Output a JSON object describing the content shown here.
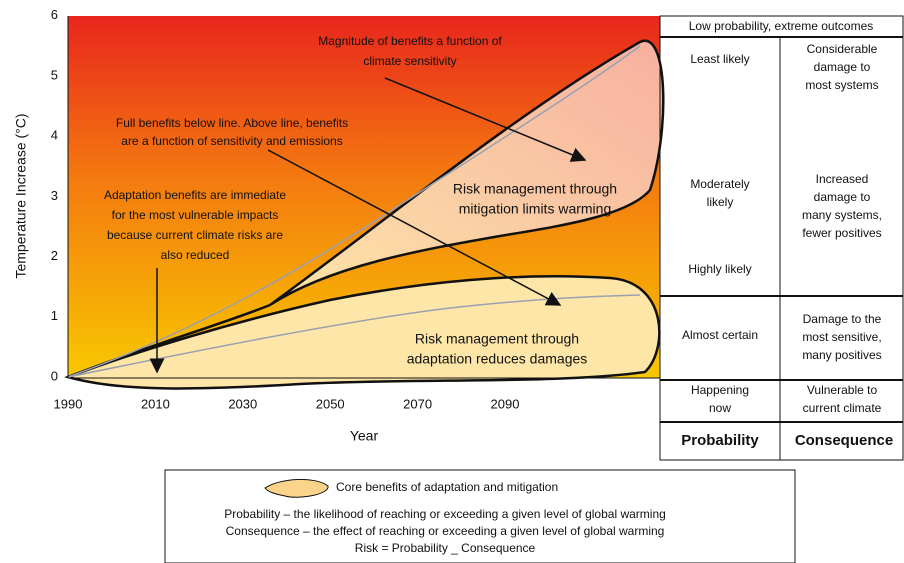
{
  "axes": {
    "y_label": "Temperature Increase (°C)",
    "x_label": "Year",
    "y_ticks": [
      "0",
      "1",
      "2",
      "3",
      "4",
      "5",
      "6"
    ],
    "x_ticks": [
      "1990",
      "2010",
      "2030",
      "2050",
      "2070",
      "2090"
    ]
  },
  "annotations": [
    [
      "Magnitude of benefits a function of",
      "climate sensitivity"
    ],
    [
      "Full benefits below line. Above line, benefits",
      "are a function of sensitivity and emissions"
    ],
    [
      "Adaptation benefits are immediate",
      "for the most vulnerable impacts",
      "because current climate risks are",
      "also reduced"
    ],
    [
      "Risk management through",
      "mitigation limits warming"
    ],
    [
      "Risk management through",
      "adaptation reduces damages"
    ]
  ],
  "table": {
    "header": "Low  probability, extreme outcomes",
    "probability": [
      [
        "Least likely"
      ],
      [
        "Moderately",
        "likely"
      ],
      [
        "Highly likely"
      ],
      [
        "Almost certain"
      ],
      [
        "Happening",
        "now"
      ]
    ],
    "consequence": [
      [
        "Considerable",
        "damage to",
        "most systems"
      ],
      [
        "Increased",
        "damage to",
        "many systems,",
        "fewer positives"
      ],
      [
        "Damage to the",
        "most sensitive,",
        "many positives"
      ],
      [
        "Vulnerable to",
        "current climate"
      ]
    ],
    "footer": [
      "Probability",
      "Consequence"
    ]
  },
  "legend": {
    "swatch_label": "Core benefits of adaptation and mitigation",
    "lines": [
      "Probability – the likelihood of reaching or exceeding a given level of global warming",
      "Consequence – the effect of reaching or exceeding a given level of global warming",
      "Risk = Probability _ Consequence"
    ]
  }
}
